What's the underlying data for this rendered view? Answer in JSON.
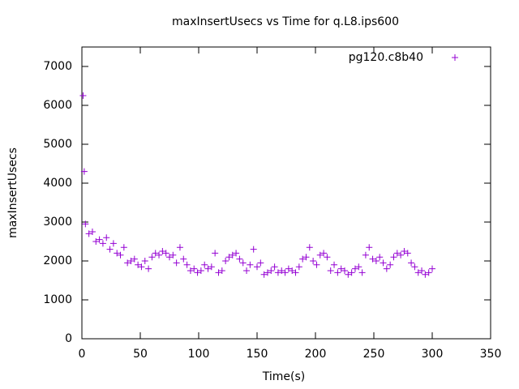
{
  "chart_data": {
    "type": "scatter",
    "title": "maxInsertUsecs vs Time for q.L8.ips600",
    "x_label": "Time(s)",
    "y_label": "maxInsertUsecs",
    "xlim": [
      0,
      350
    ],
    "xticks": [
      0,
      50,
      100,
      150,
      200,
      250,
      300,
      350
    ],
    "ylim": [
      0,
      7500
    ],
    "yticks": [
      0,
      1000,
      2000,
      3000,
      4000,
      5000,
      6000,
      7000
    ],
    "legend_position": "top-right",
    "series": [
      {
        "name": "pg120.c8b40",
        "color": "#9400d3",
        "x": [
          1,
          2,
          3,
          6,
          9,
          12,
          15,
          18,
          21,
          24,
          27,
          30,
          33,
          36,
          39,
          42,
          45,
          48,
          51,
          54,
          57,
          60,
          63,
          66,
          69,
          72,
          75,
          78,
          81,
          84,
          87,
          90,
          93,
          96,
          99,
          102,
          105,
          108,
          111,
          114,
          117,
          120,
          123,
          126,
          129,
          132,
          135,
          138,
          141,
          144,
          147,
          150,
          153,
          156,
          159,
          162,
          165,
          168,
          171,
          174,
          177,
          180,
          183,
          186,
          189,
          192,
          195,
          198,
          201,
          204,
          207,
          210,
          213,
          216,
          219,
          222,
          225,
          228,
          231,
          234,
          237,
          240,
          243,
          246,
          249,
          252,
          255,
          258,
          261,
          264,
          267,
          270,
          273,
          276,
          279,
          282,
          285,
          288,
          291,
          294,
          297,
          300
        ],
        "values": [
          6250,
          4300,
          2950,
          2700,
          2750,
          2500,
          2550,
          2450,
          2600,
          2300,
          2450,
          2200,
          2150,
          2350,
          1950,
          2000,
          2050,
          1900,
          1850,
          2000,
          1800,
          2100,
          2200,
          2150,
          2250,
          2200,
          2100,
          2150,
          1950,
          2350,
          2050,
          1900,
          1750,
          1800,
          1700,
          1750,
          1900,
          1800,
          1850,
          2200,
          1700,
          1750,
          2000,
          2100,
          2150,
          2200,
          2050,
          1950,
          1750,
          1900,
          2300,
          1850,
          1950,
          1650,
          1700,
          1750,
          1850,
          1700,
          1750,
          1700,
          1800,
          1750,
          1700,
          1850,
          2050,
          2100,
          2350,
          2000,
          1900,
          2150,
          2200,
          2100,
          1750,
          1900,
          1700,
          1800,
          1750,
          1650,
          1700,
          1800,
          1850,
          1700,
          2150,
          2350,
          2050,
          2000,
          2100,
          1950,
          1800,
          1900,
          2100,
          2200,
          2150,
          2250,
          2200,
          1950,
          1850,
          1700,
          1750,
          1650,
          1700,
          1800
        ]
      }
    ]
  }
}
